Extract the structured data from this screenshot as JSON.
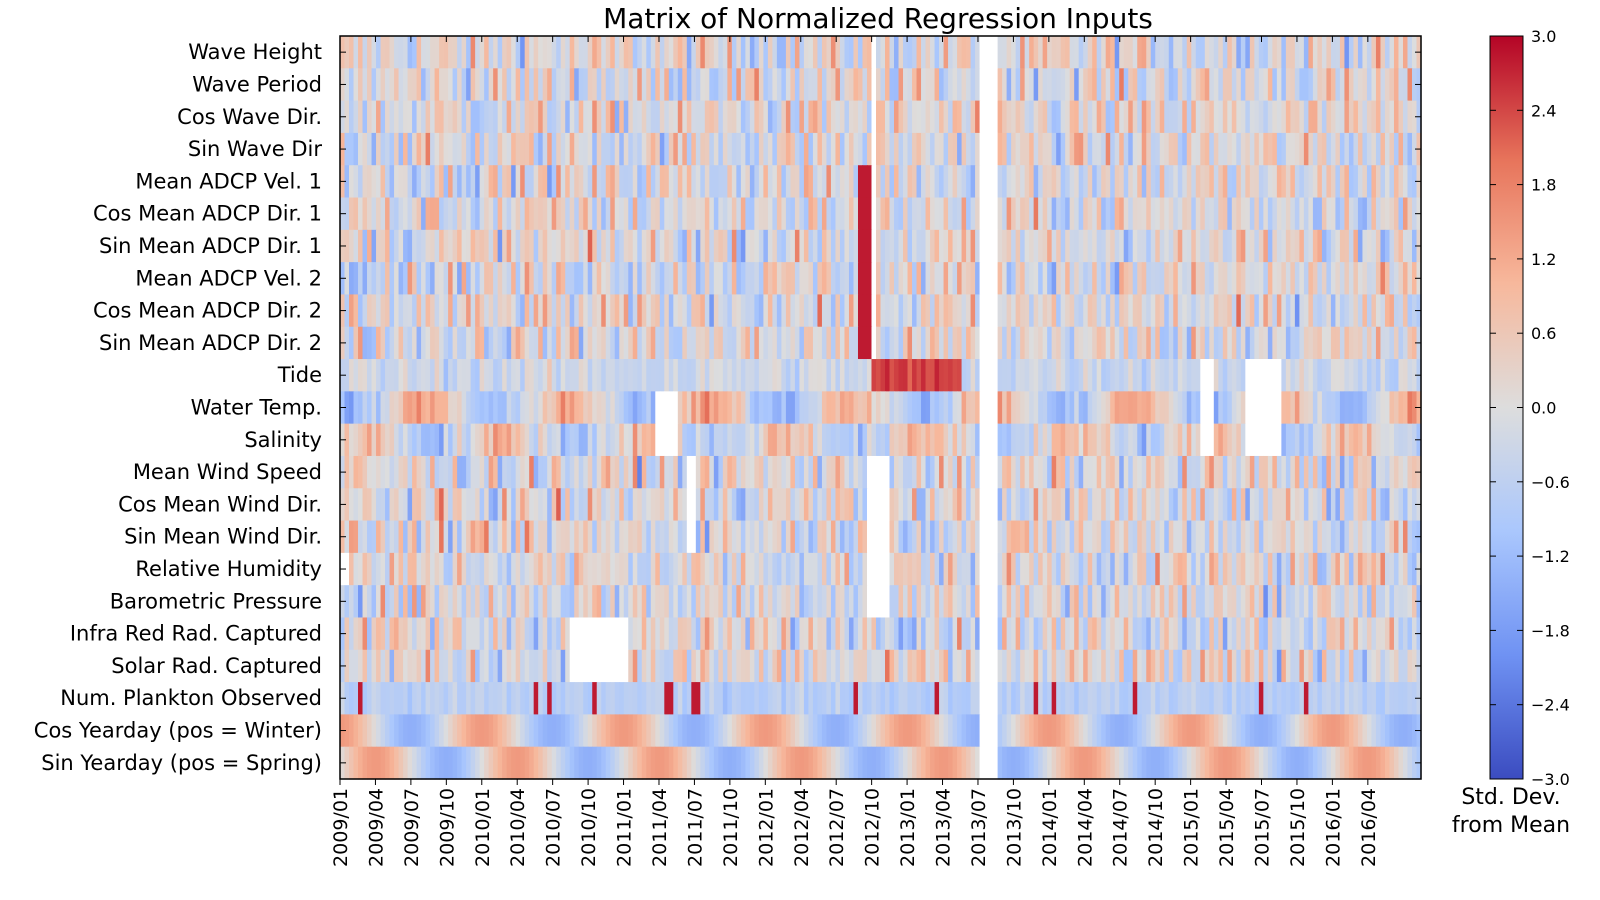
{
  "chart_data": {
    "type": "heatmap",
    "title": "Matrix of Normalized Regression Inputs",
    "rows": [
      "Wave Height",
      "Wave Period",
      "Cos Wave Dir.",
      "Sin Wave Dir",
      "Mean ADCP Vel. 1",
      "Cos Mean ADCP Dir. 1",
      "Sin Mean ADCP Dir. 1",
      "Mean ADCP Vel. 2",
      "Cos Mean ADCP Dir. 2",
      "Sin Mean ADCP Dir. 2",
      "Tide",
      "Water Temp.",
      "Salinity",
      "Mean Wind Speed",
      "Cos Mean Wind Dir.",
      "Sin Mean Wind Dir.",
      "Relative Humidity",
      "Barometric Pressure",
      "Infra Red Rad. Captured",
      "Solar Rad. Captured",
      "Num. Plankton Observed",
      "Cos Yearday (pos = Winter)",
      "Sin Yearday (pos = Spring)"
    ],
    "x_ticks": [
      "2009/01",
      "2009/04",
      "2009/07",
      "2009/10",
      "2010/01",
      "2010/04",
      "2010/07",
      "2010/10",
      "2011/01",
      "2011/04",
      "2011/07",
      "2011/10",
      "2012/01",
      "2012/04",
      "2012/07",
      "2012/10",
      "2013/01",
      "2013/04",
      "2013/07",
      "2013/10",
      "2014/01",
      "2014/04",
      "2014/07",
      "2014/10",
      "2015/01",
      "2015/04",
      "2015/07",
      "2015/10",
      "2016/01",
      "2016/04"
    ],
    "x_range_months": [
      0,
      91.5
    ],
    "colorbar": {
      "min": -3.0,
      "max": 3.0,
      "ticks": [
        "3.0",
        "2.4",
        "1.8",
        "1.2",
        "0.6",
        "0.0",
        "−0.6",
        "−1.2",
        "−1.8",
        "−2.4",
        "−3.0"
      ],
      "label_line1": "Std. Dev.",
      "label_line2": "from Mean",
      "colormap": "coolwarm",
      "stops": [
        "#3b4cc0",
        "#6f92f3",
        "#aac7fd",
        "#dddddd",
        "#f7b89c",
        "#e7745b",
        "#b40426"
      ]
    },
    "missing_blocks": [
      {
        "row_from": 0,
        "row_to": 22,
        "month_from": 54.0,
        "month_to": 55.5
      },
      {
        "row_from": 0,
        "row_to": 9,
        "month_from": 44.8,
        "month_to": 45.5
      },
      {
        "row_from": 11,
        "row_to": 12,
        "month_from": 26.8,
        "month_to": 28.5
      },
      {
        "row_from": 13,
        "row_to": 15,
        "month_from": 29.2,
        "month_to": 30.2
      },
      {
        "row_from": 13,
        "row_to": 17,
        "month_from": 44.5,
        "month_to": 46.5
      },
      {
        "row_from": 18,
        "row_to": 19,
        "month_from": 19.5,
        "month_to": 24.5
      },
      {
        "row_from": 10,
        "row_to": 12,
        "month_from": 73.0,
        "month_to": 73.8
      },
      {
        "row_from": 10,
        "row_to": 12,
        "month_from": 76.5,
        "month_to": 79.5
      },
      {
        "row_from": 16,
        "row_to": 16,
        "month_from": 0.0,
        "month_to": 0.6
      }
    ]
  }
}
